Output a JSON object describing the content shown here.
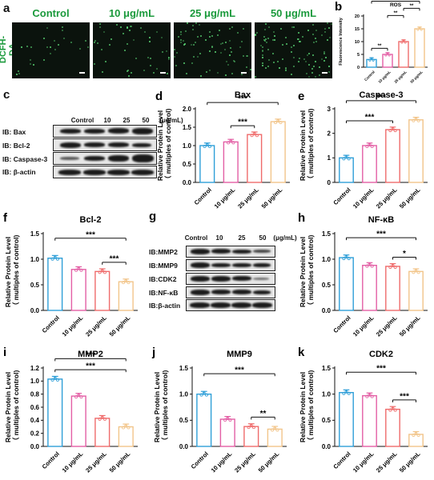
{
  "panels": {
    "a": {
      "letter": "a",
      "labels": [
        "Control",
        "10 μg/mL",
        "25 μg/mL",
        "50 μg/mL"
      ],
      "side_label": "DCFH-DA"
    },
    "c": {
      "letter": "c",
      "lanes": [
        "Control",
        "10",
        "25",
        "50"
      ],
      "unit": "(μg/mL)",
      "rows": [
        "IB: Bax",
        "IB: Bcl-2",
        "IB: Caspase-3",
        "IB: β-actin"
      ]
    },
    "g": {
      "letter": "g",
      "lanes": [
        "Control",
        "10",
        "25",
        "50"
      ],
      "unit": "(μg/mL)",
      "rows": [
        "IB:MMP2",
        "IB:MMP9",
        "IB:CDK2",
        "IB:NF-κB",
        "IB:β-actin"
      ]
    }
  },
  "chart_data": [
    {
      "id": "b",
      "letter": "b",
      "type": "bar",
      "title": "ROS",
      "ylabel": "Fluorescence Intensity",
      "xlabel": "",
      "categories": [
        "Control",
        "10 μg/mL",
        "25 μg/mL",
        "50 μg/mL"
      ],
      "values": [
        3,
        5,
        10,
        15
      ],
      "ylim": [
        0,
        20
      ],
      "yticks": [
        0,
        5,
        10,
        15,
        20
      ],
      "colors": [
        "#2f9fd8",
        "#e35fa5",
        "#ef6b6b",
        "#f2c58a"
      ],
      "sig": [
        {
          "from": 0,
          "to": 1,
          "label": "**"
        },
        {
          "from": 1,
          "to": 2,
          "label": "**"
        },
        {
          "from": 2,
          "to": 3,
          "label": "**"
        },
        {
          "from": 0,
          "to": 3,
          "label": "**"
        }
      ]
    },
    {
      "id": "d",
      "letter": "d",
      "type": "bar",
      "title": "Bax",
      "ylabel": "Relative Protein Level\n（ multiples of control)",
      "xlabel": "",
      "categories": [
        "Control",
        "10 μg/mL",
        "25 μg/mL",
        "50 μg/mL"
      ],
      "values": [
        1.0,
        1.1,
        1.3,
        1.65
      ],
      "ylim": [
        0,
        2.0
      ],
      "yticks": [
        0.0,
        0.5,
        1.0,
        1.5,
        2.0
      ],
      "colors": [
        "#2f9fd8",
        "#e35fa5",
        "#ef6b6b",
        "#f2c58a"
      ],
      "sig": [
        {
          "from": 1,
          "to": 2,
          "label": "***"
        },
        {
          "from": 0,
          "to": 3,
          "label": "***"
        }
      ]
    },
    {
      "id": "e",
      "letter": "e",
      "type": "bar",
      "title": "Caspase-3",
      "ylabel": "Relative Protein Level\n（ multiples of control)",
      "xlabel": "",
      "categories": [
        "Control",
        "10 μg/mL",
        "25 μg/mL",
        "50 μg/mL"
      ],
      "values": [
        1.0,
        1.5,
        2.15,
        2.55
      ],
      "ylim": [
        0,
        3
      ],
      "yticks": [
        0,
        1,
        2,
        3
      ],
      "colors": [
        "#2f9fd8",
        "#e35fa5",
        "#ef6b6b",
        "#f2c58a"
      ],
      "sig": [
        {
          "from": 0,
          "to": 2,
          "label": "***"
        },
        {
          "from": 0,
          "to": 3,
          "label": "***"
        }
      ]
    },
    {
      "id": "f",
      "letter": "f",
      "type": "bar",
      "title": "Bcl-2",
      "ylabel": "Relative Protein Level\n（ multiples of control)",
      "xlabel": "",
      "categories": [
        "Control",
        "10 μg/mL",
        "25 μg/mL",
        "50 μg/mL"
      ],
      "values": [
        1.02,
        0.8,
        0.76,
        0.56
      ],
      "ylim": [
        0,
        1.5
      ],
      "yticks": [
        0.0,
        0.5,
        1.0,
        1.5
      ],
      "colors": [
        "#2f9fd8",
        "#e35fa5",
        "#ef6b6b",
        "#f2c58a"
      ],
      "sig": [
        {
          "from": 2,
          "to": 3,
          "label": "***"
        },
        {
          "from": 0,
          "to": 3,
          "label": "***"
        }
      ]
    },
    {
      "id": "h",
      "letter": "h",
      "type": "bar",
      "title": "NF-κB",
      "ylabel": "Relative Protein Level\n（ multiples of control)",
      "xlabel": "",
      "categories": [
        "Control",
        "10 μg/mL",
        "25 μg/mL",
        "50 μg/mL"
      ],
      "values": [
        1.03,
        0.88,
        0.86,
        0.76
      ],
      "ylim": [
        0,
        1.5
      ],
      "yticks": [
        0.0,
        0.5,
        1.0,
        1.5
      ],
      "colors": [
        "#2f9fd8",
        "#e35fa5",
        "#ef6b6b",
        "#f2c58a"
      ],
      "sig": [
        {
          "from": 2,
          "to": 3,
          "label": "*"
        },
        {
          "from": 0,
          "to": 3,
          "label": "***"
        }
      ]
    },
    {
      "id": "i",
      "letter": "i",
      "type": "bar",
      "title": "MMP2",
      "ylabel": "Relative Protein Level\n（ multiples of control)",
      "xlabel": "",
      "categories": [
        "Control",
        "10 μg/mL",
        "25 μg/mL",
        "50 μg/mL"
      ],
      "values": [
        1.03,
        0.77,
        0.43,
        0.3
      ],
      "ylim": [
        0,
        1.2
      ],
      "yticks": [
        0.0,
        0.2,
        0.4,
        0.6,
        0.8,
        1.0,
        1.2
      ],
      "colors": [
        "#2f9fd8",
        "#e35fa5",
        "#ef6b6b",
        "#f2c58a"
      ],
      "sig": [
        {
          "from": 0,
          "to": 3,
          "label": "***"
        },
        {
          "from": 0,
          "to": 3,
          "label": "***"
        }
      ]
    },
    {
      "id": "j",
      "letter": "j",
      "type": "bar",
      "title": "MMP9",
      "ylabel": "Relative Protein Level\n（ multiples of control)",
      "xlabel": "",
      "categories": [
        "Control",
        "10 μg/mL",
        "25 μg/mL",
        "50 μg/mL"
      ],
      "values": [
        1.0,
        0.52,
        0.38,
        0.33
      ],
      "ylim": [
        0,
        1.5
      ],
      "yticks": [
        0.0,
        0.5,
        1.0,
        1.5
      ],
      "colors": [
        "#2f9fd8",
        "#e35fa5",
        "#ef6b6b",
        "#f2c58a"
      ],
      "sig": [
        {
          "from": 2,
          "to": 3,
          "label": "**"
        },
        {
          "from": 0,
          "to": 3,
          "label": "***"
        }
      ]
    },
    {
      "id": "k",
      "letter": "k",
      "type": "bar",
      "title": "CDK2",
      "ylabel": "Relative Protein Level\n（ multiples of control)",
      "xlabel": "",
      "categories": [
        "Control",
        "10 μg/mL",
        "25 μg/mL",
        "50 μg/mL"
      ],
      "values": [
        1.03,
        0.97,
        0.71,
        0.23
      ],
      "ylim": [
        0,
        1.5
      ],
      "yticks": [
        0.0,
        0.5,
        1.0,
        1.5
      ],
      "colors": [
        "#2f9fd8",
        "#e35fa5",
        "#ef6b6b",
        "#f2c58a"
      ],
      "sig": [
        {
          "from": 2,
          "to": 3,
          "label": "***"
        },
        {
          "from": 0,
          "to": 3,
          "label": "***"
        }
      ]
    }
  ]
}
